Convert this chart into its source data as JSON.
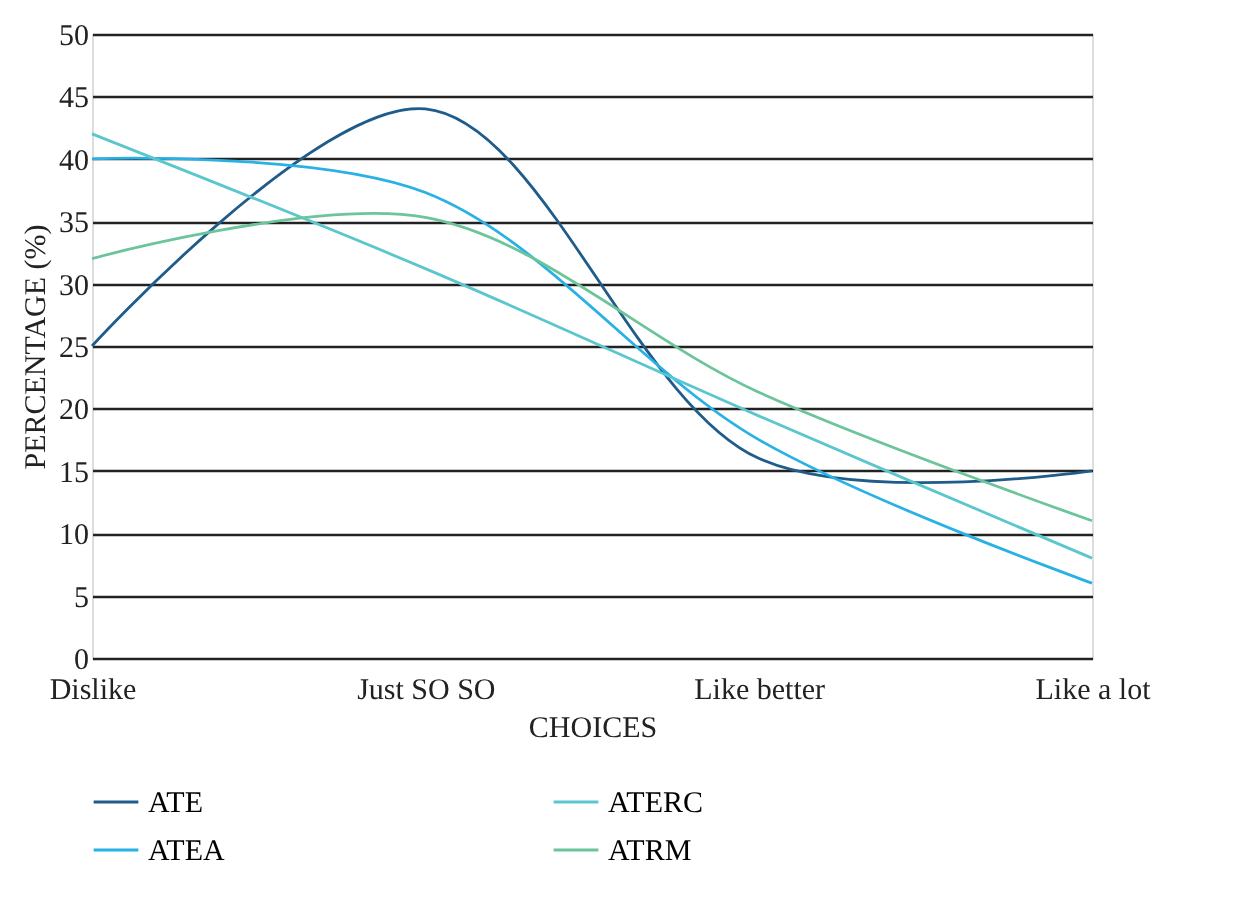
{
  "chart_data": {
    "type": "line",
    "xlabel": "CHOICES",
    "ylabel": "PERCENTAGE (%)",
    "categories": [
      "Dislike",
      "Just SO SO",
      "Like better",
      "Like a lot"
    ],
    "series": [
      {
        "name": "ATE",
        "color": "#1f5c8a",
        "values": [
          25,
          44,
          16,
          15
        ]
      },
      {
        "name": "ATEA",
        "color": "#29b1e6",
        "values": [
          40,
          37.3,
          17.5,
          6
        ]
      },
      {
        "name": "ATERC",
        "color": "#5cc6cf",
        "values": [
          42,
          31.2,
          19.4,
          8
        ]
      },
      {
        "name": "ATRM",
        "color": "#6cc49a",
        "values": [
          32,
          35.3,
          21.3,
          11
        ]
      }
    ],
    "ylim": [
      0,
      50
    ],
    "yticks": [
      0,
      5,
      10,
      15,
      20,
      25,
      30,
      35,
      40,
      45,
      50
    ],
    "grid": "y",
    "legend": "bottom",
    "marker": "none",
    "line_style": "solid"
  }
}
